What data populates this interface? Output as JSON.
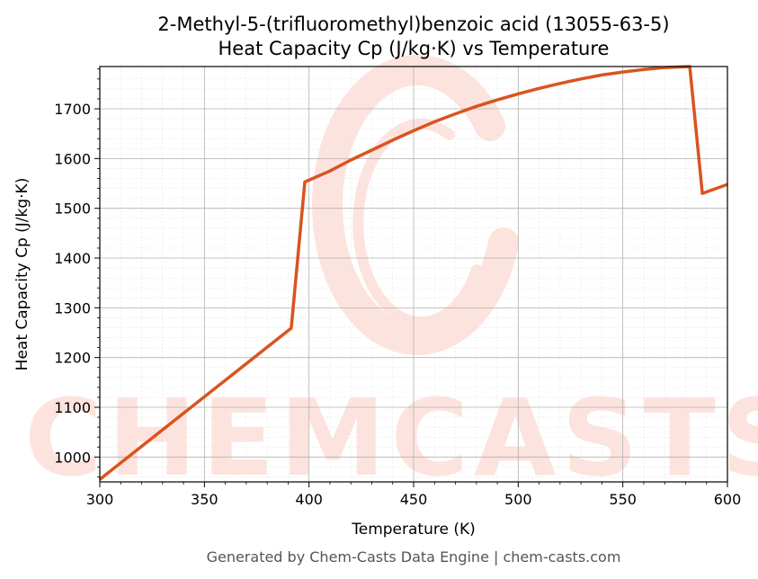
{
  "chart_data": {
    "type": "line",
    "title": "2-Methyl-5-(trifluoromethyl)benzoic acid (13055-63-5)",
    "subtitle": "Heat Capacity Cp (J/kg·K) vs Temperature",
    "xlabel": "Temperature (K)",
    "ylabel": "Heat Capacity Cp (J/kg·K)",
    "xlim": [
      300,
      600
    ],
    "ylim": [
      950,
      1785
    ],
    "x_ticks": [
      300,
      350,
      400,
      450,
      500,
      550,
      600
    ],
    "y_ticks": [
      1000,
      1100,
      1200,
      1300,
      1400,
      1500,
      1600,
      1700
    ],
    "grid": true,
    "line_color": "#d9541e",
    "series": [
      {
        "x": [
          300,
          391.5,
          398,
          410,
          420,
          430,
          440,
          450,
          460,
          470,
          480,
          490,
          500,
          510,
          520,
          530,
          540,
          550,
          560,
          570,
          582,
          588,
          600
        ],
        "y": [
          955,
          1259,
          1553,
          1575,
          1597,
          1617,
          1637,
          1656,
          1674,
          1690,
          1705,
          1718,
          1730,
          1741,
          1751,
          1760,
          1768,
          1774,
          1779,
          1783,
          1785,
          1530,
          1548
        ]
      }
    ]
  },
  "watermark": {
    "text": "CHEMCASTS",
    "color": "#fde3de"
  },
  "footer": "Generated by Chem-Casts Data Engine | chem-casts.com"
}
